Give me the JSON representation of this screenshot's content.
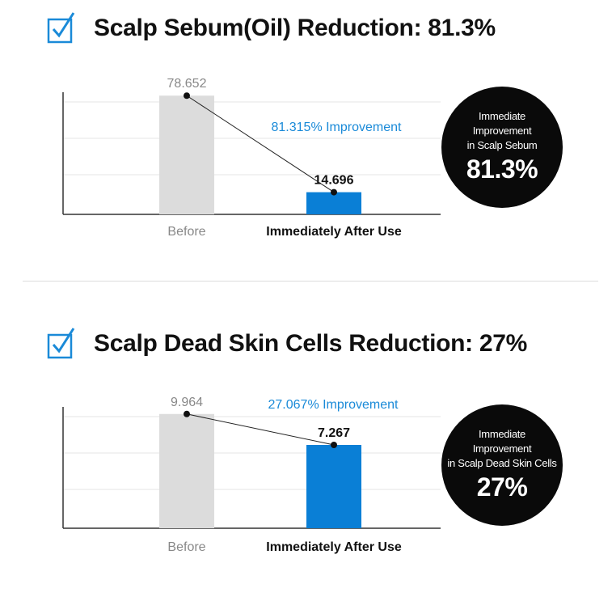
{
  "sections": [
    {
      "title": "Scalp Sebum(Oil) Reduction: 81.3%",
      "callout": {
        "line1": "Immediate",
        "line2": "Improvement",
        "line3": "in Scalp Sebum",
        "value": "81.3%"
      }
    },
    {
      "title": "Scalp Dead Skin Cells Reduction: 27%",
      "callout": {
        "line1": "Immediate",
        "line2": "Improvement",
        "line3": "in Scalp Dead Skin Cells",
        "value": "27%"
      }
    }
  ],
  "chart_data": [
    {
      "type": "bar",
      "categories": [
        "Before",
        "Immediately After Use"
      ],
      "values": [
        78.652,
        14.696
      ],
      "value_labels": [
        "78.652",
        "14.696"
      ],
      "annotation": "81.315% Improvement",
      "ylim": [
        0,
        82
      ],
      "grid": true,
      "colors": [
        "#dcdcdc",
        "#0a7fd6"
      ]
    },
    {
      "type": "bar",
      "categories": [
        "Before",
        "Immediately After Use"
      ],
      "values": [
        9.964,
        7.267
      ],
      "value_labels": [
        "9.964",
        "7.267"
      ],
      "annotation": "27.067% Improvement",
      "ylim": [
        0,
        10.3
      ],
      "grid": true,
      "colors": [
        "#dcdcdc",
        "#0a7fd6"
      ]
    }
  ],
  "icons": {
    "check": "checkbox-check-icon"
  },
  "accent_color": "#1a8ad8"
}
